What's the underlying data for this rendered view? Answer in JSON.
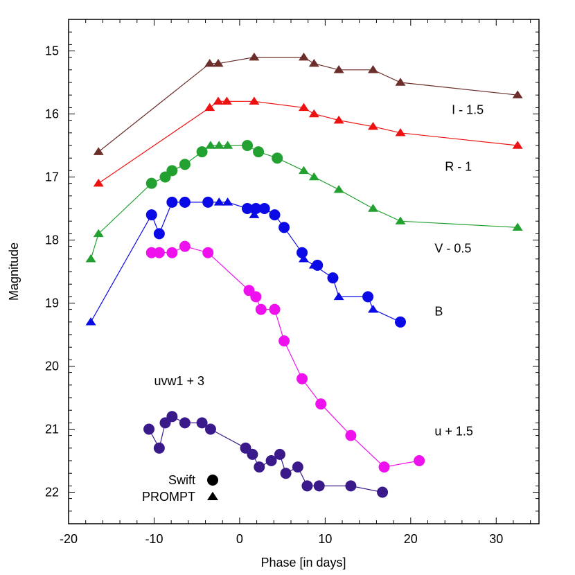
{
  "chart_data": {
    "type": "scatter",
    "title": "",
    "xlabel": "Phase [in days]",
    "ylabel": "Magnitude",
    "xlim": [
      -20,
      35
    ],
    "ylim": [
      14.5,
      22.5
    ],
    "y_inverted": true,
    "x_ticks": [
      "-20",
      "-10",
      "0",
      "10",
      "20",
      "30"
    ],
    "x_tick_values": [
      -20,
      -10,
      0,
      10,
      20,
      30
    ],
    "y_ticks": [
      "15",
      "16",
      "17",
      "18",
      "19",
      "20",
      "21",
      "22"
    ],
    "y_tick_values": [
      15,
      16,
      17,
      18,
      19,
      20,
      21,
      22
    ],
    "grid": false,
    "legend": {
      "placement": "bottom-left",
      "entries": [
        {
          "label": "Swift",
          "marker": "circle"
        },
        {
          "label": "PROMPT",
          "marker": "triangle"
        }
      ]
    },
    "series": [
      {
        "band": "I",
        "label": "I - 1.5",
        "color": "#6b2e2a",
        "line": [
          [
            -16.5,
            16.6
          ],
          [
            -3.5,
            15.2
          ],
          [
            -2.5,
            15.2
          ],
          [
            1.7,
            15.1
          ],
          [
            7.5,
            15.1
          ],
          [
            8.7,
            15.2
          ],
          [
            11.6,
            15.3
          ],
          [
            15.6,
            15.3
          ],
          [
            18.8,
            15.5
          ],
          [
            32.5,
            15.7
          ]
        ],
        "triangles": [
          [
            -16.5,
            16.6
          ],
          [
            -3.5,
            15.2
          ],
          [
            -2.5,
            15.2
          ],
          [
            1.7,
            15.1
          ],
          [
            7.5,
            15.1
          ],
          [
            8.7,
            15.2
          ],
          [
            11.6,
            15.3
          ],
          [
            15.6,
            15.3
          ],
          [
            18.8,
            15.5
          ],
          [
            32.5,
            15.7
          ]
        ],
        "circles": []
      },
      {
        "band": "R",
        "label": "R - 1",
        "color": "#ee1111",
        "line": [
          [
            -16.5,
            17.1
          ],
          [
            -3.5,
            15.9
          ],
          [
            -2.5,
            15.8
          ],
          [
            -1.5,
            15.8
          ],
          [
            1.7,
            15.8
          ],
          [
            7.5,
            15.9
          ],
          [
            8.7,
            16.0
          ],
          [
            11.6,
            16.1
          ],
          [
            15.6,
            16.2
          ],
          [
            18.8,
            16.3
          ],
          [
            32.5,
            16.5
          ]
        ],
        "triangles": [
          [
            -16.5,
            17.1
          ],
          [
            -3.5,
            15.9
          ],
          [
            -2.5,
            15.8
          ],
          [
            -1.5,
            15.8
          ],
          [
            1.7,
            15.8
          ],
          [
            7.5,
            15.9
          ],
          [
            8.7,
            16.0
          ],
          [
            11.6,
            16.1
          ],
          [
            15.6,
            16.2
          ],
          [
            18.8,
            16.3
          ],
          [
            32.5,
            16.5
          ]
        ],
        "circles": []
      },
      {
        "band": "V",
        "label": "V - 0.5",
        "color": "#22a030",
        "line": [
          [
            -17.4,
            18.3
          ],
          [
            -16.5,
            17.9
          ],
          [
            -10.3,
            17.1
          ],
          [
            -8.7,
            17.0
          ],
          [
            -7.9,
            16.9
          ],
          [
            -6.4,
            16.8
          ],
          [
            -4.4,
            16.6
          ],
          [
            -3.4,
            16.5
          ],
          [
            -2.4,
            16.5
          ],
          [
            -1.4,
            16.5
          ],
          [
            0.9,
            16.5
          ],
          [
            2.2,
            16.6
          ],
          [
            4.4,
            16.7
          ],
          [
            7.5,
            16.9
          ],
          [
            8.7,
            17.0
          ],
          [
            11.6,
            17.2
          ],
          [
            15.6,
            17.5
          ],
          [
            18.8,
            17.7
          ],
          [
            32.5,
            17.8
          ]
        ],
        "triangles": [
          [
            -17.4,
            18.3
          ],
          [
            -16.5,
            17.9
          ],
          [
            -3.4,
            16.5
          ],
          [
            -2.4,
            16.5
          ],
          [
            -1.4,
            16.5
          ],
          [
            7.5,
            16.9
          ],
          [
            8.7,
            17.0
          ],
          [
            11.6,
            17.2
          ],
          [
            15.6,
            17.5
          ],
          [
            18.8,
            17.7
          ],
          [
            32.5,
            17.8
          ]
        ],
        "circles": [
          [
            -10.3,
            17.1
          ],
          [
            -8.7,
            17.0
          ],
          [
            -7.9,
            16.9
          ],
          [
            -6.4,
            16.8
          ],
          [
            -4.4,
            16.6
          ],
          [
            0.9,
            16.5
          ],
          [
            2.2,
            16.6
          ],
          [
            4.4,
            16.7
          ]
        ]
      },
      {
        "band": "B",
        "label": "B",
        "color": "#0a0ae6",
        "line": [
          [
            -17.4,
            19.3
          ],
          [
            -10.3,
            17.6
          ],
          [
            -9.4,
            17.9
          ],
          [
            -7.9,
            17.4
          ],
          [
            -6.4,
            17.4
          ],
          [
            -3.7,
            17.4
          ],
          [
            -2.4,
            17.4
          ],
          [
            -1.4,
            17.4
          ],
          [
            0.9,
            17.5
          ],
          [
            1.7,
            17.6
          ],
          [
            2.9,
            17.5
          ],
          [
            4.1,
            17.6
          ],
          [
            5.2,
            17.8
          ],
          [
            7.3,
            18.2
          ],
          [
            7.5,
            18.3
          ],
          [
            8.7,
            18.4
          ],
          [
            10.9,
            18.6
          ],
          [
            11.6,
            18.9
          ],
          [
            15.0,
            18.9
          ],
          [
            15.6,
            19.1
          ],
          [
            18.8,
            19.3
          ]
        ],
        "triangles": [
          [
            -17.4,
            19.3
          ],
          [
            -2.4,
            17.4
          ],
          [
            -1.4,
            17.4
          ],
          [
            1.7,
            17.6
          ],
          [
            7.5,
            18.3
          ],
          [
            8.7,
            18.4
          ],
          [
            11.6,
            18.9
          ],
          [
            15.6,
            19.1
          ]
        ],
        "circles": [
          [
            -10.3,
            17.6
          ],
          [
            -9.4,
            17.9
          ],
          [
            -7.9,
            17.4
          ],
          [
            -6.4,
            17.4
          ],
          [
            -3.7,
            17.4
          ],
          [
            0.9,
            17.5
          ],
          [
            1.9,
            17.5
          ],
          [
            2.9,
            17.5
          ],
          [
            4.1,
            17.6
          ],
          [
            5.2,
            17.8
          ],
          [
            7.3,
            18.2
          ],
          [
            9.1,
            18.4
          ],
          [
            10.9,
            18.6
          ],
          [
            15.0,
            18.9
          ],
          [
            18.8,
            19.3
          ]
        ]
      },
      {
        "band": "uvw1",
        "label": "uvw1 + 3",
        "color": "#ee11ee",
        "line": [
          [
            -10.3,
            18.2
          ],
          [
            -9.4,
            18.2
          ],
          [
            -7.9,
            18.2
          ],
          [
            -6.4,
            18.1
          ],
          [
            -3.7,
            18.2
          ],
          [
            1.1,
            18.8
          ],
          [
            1.9,
            18.9
          ],
          [
            2.5,
            19.1
          ],
          [
            4.1,
            19.1
          ],
          [
            5.2,
            19.6
          ],
          [
            7.3,
            20.2
          ],
          [
            9.5,
            20.6
          ],
          [
            13.0,
            21.1
          ],
          [
            16.9,
            21.6
          ],
          [
            21.0,
            21.5
          ]
        ],
        "triangles": [],
        "circles": [
          [
            -10.3,
            18.2
          ],
          [
            -9.4,
            18.2
          ],
          [
            -7.9,
            18.2
          ],
          [
            -6.4,
            18.1
          ],
          [
            -3.7,
            18.2
          ],
          [
            1.1,
            18.8
          ],
          [
            1.9,
            18.9
          ],
          [
            2.5,
            19.1
          ],
          [
            4.1,
            19.1
          ],
          [
            5.2,
            19.6
          ],
          [
            7.3,
            20.2
          ],
          [
            9.5,
            20.6
          ],
          [
            13.0,
            21.1
          ],
          [
            16.9,
            21.6
          ],
          [
            21.0,
            21.5
          ]
        ]
      },
      {
        "band": "u",
        "label": "u + 1.5",
        "color": "#3a1a8a",
        "line": [
          [
            -10.6,
            21.0
          ],
          [
            -9.4,
            21.3
          ],
          [
            -8.7,
            20.9
          ],
          [
            -7.9,
            20.8
          ],
          [
            -6.4,
            20.9
          ],
          [
            -4.4,
            20.9
          ],
          [
            -3.4,
            21.0
          ],
          [
            0.7,
            21.3
          ],
          [
            1.5,
            21.4
          ],
          [
            2.3,
            21.6
          ],
          [
            3.7,
            21.5
          ],
          [
            4.7,
            21.4
          ],
          [
            5.4,
            21.7
          ],
          [
            6.8,
            21.6
          ],
          [
            7.9,
            21.9
          ],
          [
            9.3,
            21.9
          ],
          [
            13.0,
            21.9
          ],
          [
            16.7,
            22.0
          ]
        ],
        "triangles": [],
        "circles": [
          [
            -10.6,
            21.0
          ],
          [
            -9.4,
            21.3
          ],
          [
            -8.7,
            20.9
          ],
          [
            -7.9,
            20.8
          ],
          [
            -6.4,
            20.9
          ],
          [
            -4.4,
            20.9
          ],
          [
            -3.4,
            21.0
          ],
          [
            0.7,
            21.3
          ],
          [
            1.5,
            21.4
          ],
          [
            2.3,
            21.6
          ],
          [
            3.7,
            21.5
          ],
          [
            4.7,
            21.4
          ],
          [
            5.4,
            21.7
          ],
          [
            6.8,
            21.6
          ],
          [
            7.9,
            21.9
          ],
          [
            9.3,
            21.9
          ],
          [
            13.0,
            21.9
          ],
          [
            16.7,
            22.0
          ]
        ]
      }
    ],
    "annotations": [
      {
        "text": "I - 1.5",
        "x": 24.8,
        "y": 16.0
      },
      {
        "text": "R - 1",
        "x": 24.0,
        "y": 16.9
      },
      {
        "text": "V - 0.5",
        "x": 22.8,
        "y": 18.2
      },
      {
        "text": "B",
        "x": 22.8,
        "y": 19.2
      },
      {
        "text": "uvw1 + 3",
        "x": -10.0,
        "y": 20.3
      },
      {
        "text": "u + 1.5",
        "x": 22.8,
        "y": 21.1
      }
    ]
  }
}
